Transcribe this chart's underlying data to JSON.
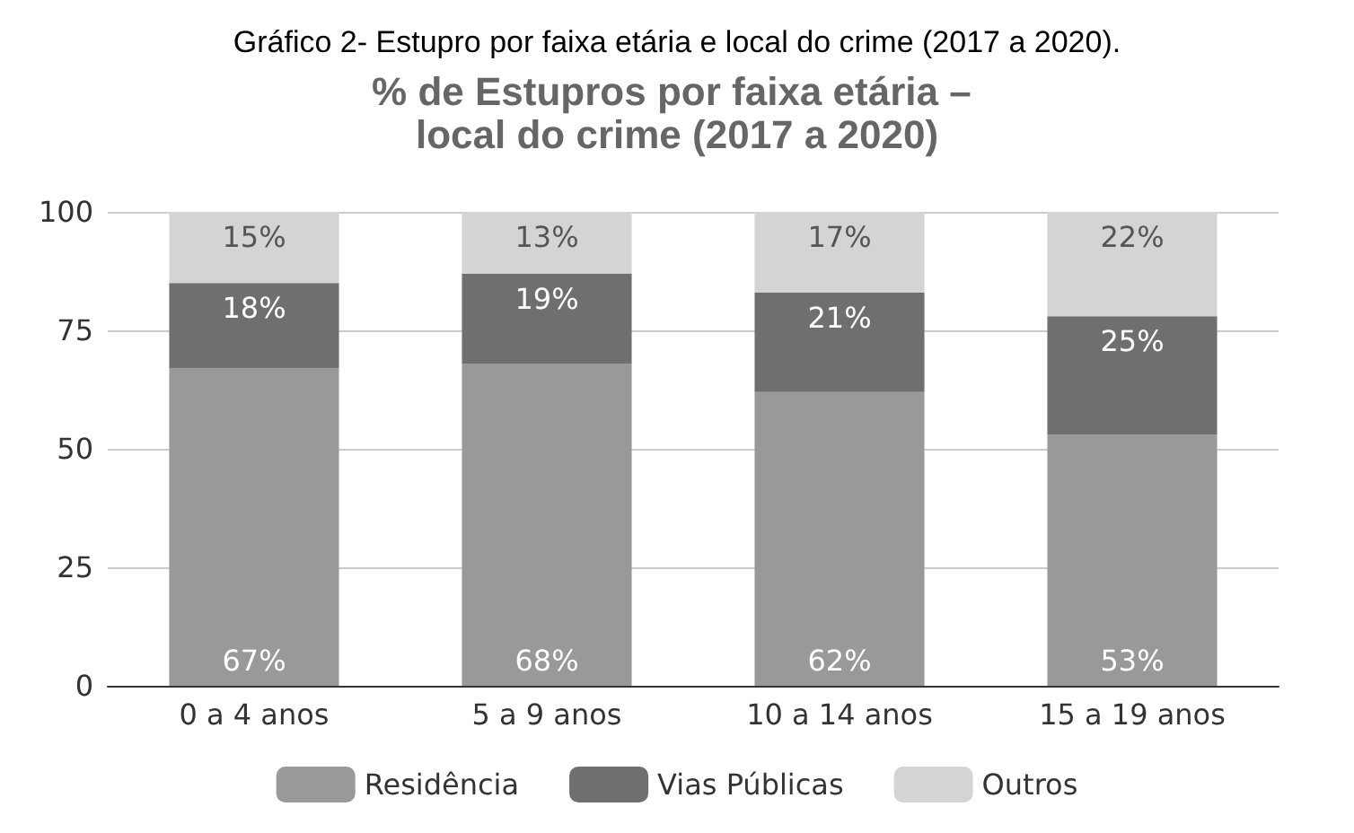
{
  "chart_data": {
    "type": "bar",
    "title": "Gráfico 2- Estupro por faixa etária e local do crime (2017 a 2020).",
    "subtitle": "% de Estupros por faixa etária – local do crime (2017 a 2020)",
    "categories": [
      "0 a 4 anos",
      "5 a 9 anos",
      "10 a 14 anos",
      "15 a 19 anos"
    ],
    "stacked": true,
    "series": [
      {
        "name": "Residência",
        "color": "#999999",
        "values": [
          67,
          68,
          62,
          53
        ],
        "value_labels": [
          "67%",
          "68%",
          "62%",
          "53%"
        ]
      },
      {
        "name": "Vias Públicas",
        "color": "#6f6f6f",
        "values": [
          18,
          19,
          21,
          25
        ],
        "value_labels": [
          "18%",
          "19%",
          "21%",
          "25%"
        ]
      },
      {
        "name": "Outros",
        "color": "#d4d4d4",
        "values": [
          15,
          13,
          17,
          22
        ],
        "value_labels": [
          "15%",
          "13%",
          "17%",
          "22%"
        ]
      }
    ],
    "ylim": [
      0,
      100
    ],
    "yticks": [
      0,
      25,
      50,
      75,
      100
    ],
    "grid": "y",
    "legend": "bottom"
  }
}
